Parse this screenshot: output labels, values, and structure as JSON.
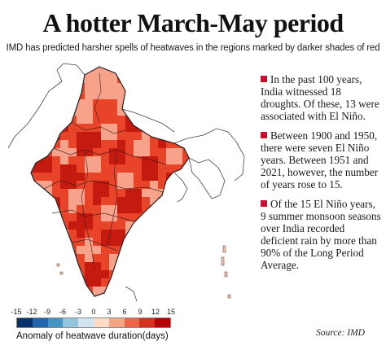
{
  "title": "A hotter March-May period",
  "subtitle": "IMD has predicted harsher spells of heatwaves in the regions marked by darker shades of red",
  "facts": [
    "In the past 100 years, India witnessed 18 droughts. Of these, 13 were associated with El Niño.",
    "Between 1900 and 1950, there were seven El Niño years. Between 1951 and 2021, however, the number of years rose to 15.",
    "Of the 15 El Niño years, 9 summer monsoon seasons over India recorded deficient rain by more than 90% of the Long Period Average."
  ],
  "legend": {
    "ticks": [
      "-15",
      "-12",
      "-9",
      "-6",
      "-3",
      "0",
      "3",
      "6",
      "9",
      "12",
      "15"
    ],
    "colors": [
      "#08306b",
      "#2166ac",
      "#4393c3",
      "#92c5de",
      "#d1e5f0",
      "#fddbc7",
      "#f4a582",
      "#ef6548",
      "#d7301f",
      "#b30000"
    ],
    "label": "Anomaly of heatwave duration(days)"
  },
  "source": "Source: IMD",
  "colors": {
    "accent": "#c8102e",
    "map_dark": "#c41a10",
    "map_mid": "#e8442a",
    "map_light": "#f7a38c"
  }
}
